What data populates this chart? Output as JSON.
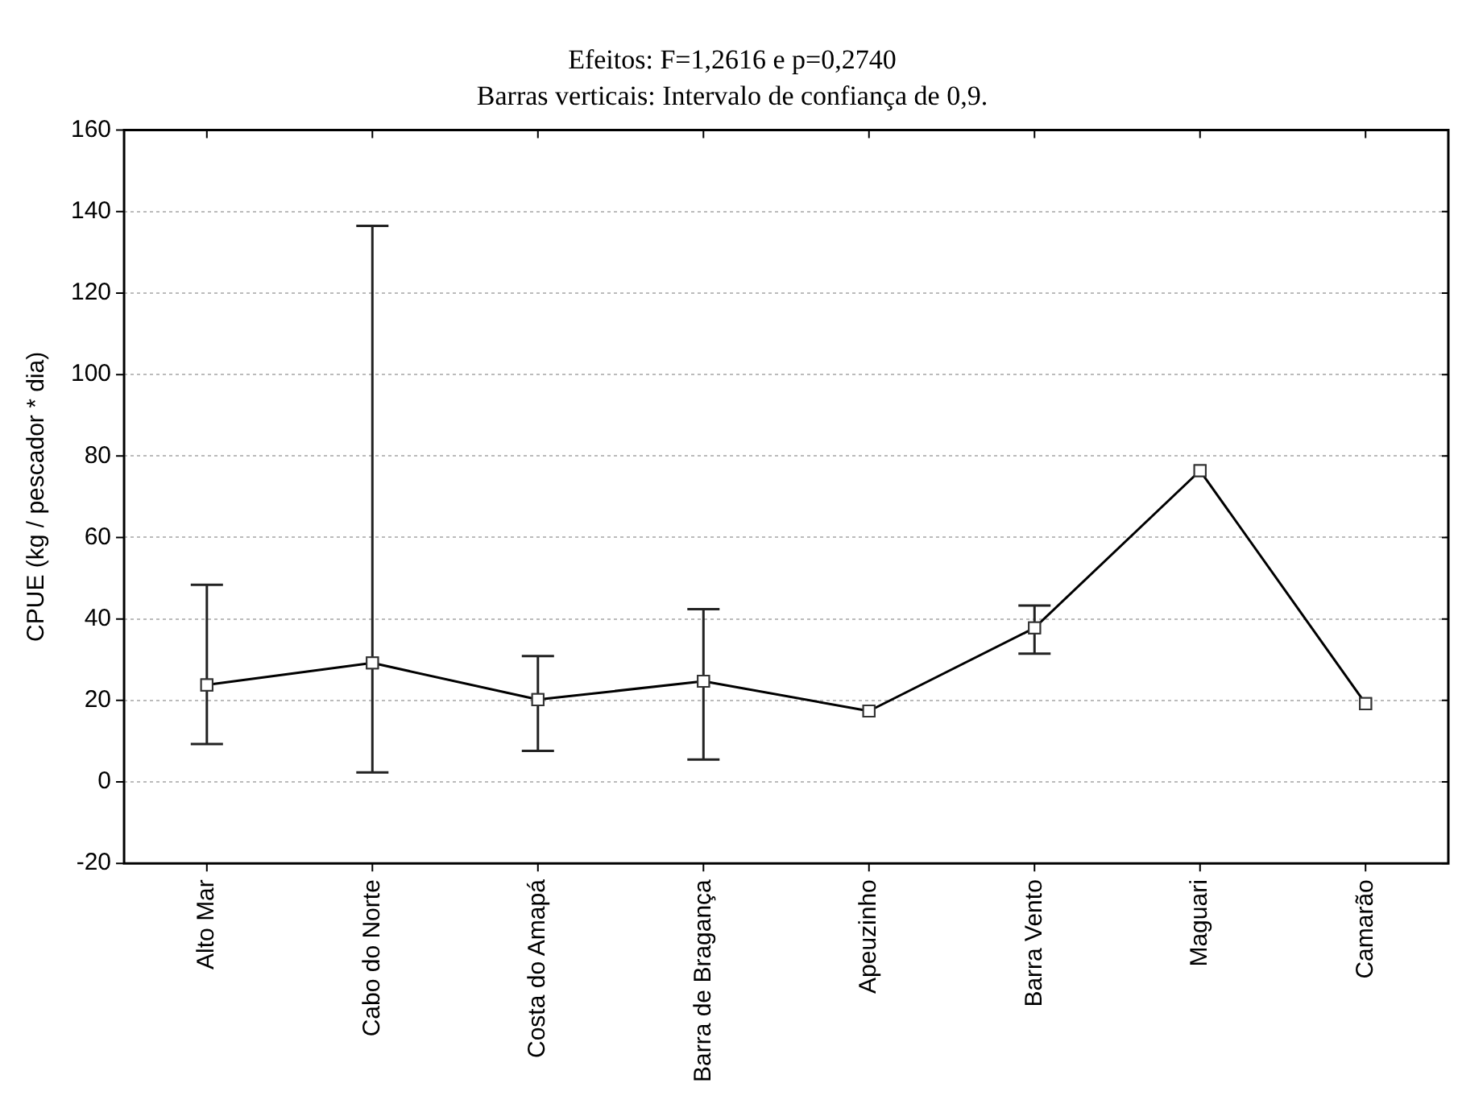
{
  "chart_data": {
    "type": "line",
    "title": "Efeitos: F=1,2616 e p=0,2740",
    "subtitle": "Barras verticais: Intervalo de confiança de 0,9.",
    "ylabel": "CPUE (kg / pescador * dia)",
    "categories": [
      "Alto Mar",
      "Cabo do Norte",
      "Costa do Amapá",
      "Barra de Bragança",
      "Apeuzinho",
      "Barra Vento",
      "Maguari",
      "Camarão"
    ],
    "values": [
      23.8,
      29.2,
      20.2,
      24.7,
      17.4,
      37.8,
      76.4,
      19.2
    ],
    "errors": [
      [
        9.3,
        48.4
      ],
      [
        2.3,
        136.5
      ],
      [
        7.6,
        30.9
      ],
      [
        5.5,
        42.4
      ],
      null,
      [
        31.5,
        43.3
      ],
      null,
      null
    ],
    "color": "#000000",
    "marker": "square",
    "line_style": "solid",
    "grid": "y",
    "ylim": [
      -20,
      160
    ],
    "yticks": [
      -20,
      0,
      20,
      40,
      60,
      80,
      100,
      120,
      140,
      160
    ]
  }
}
